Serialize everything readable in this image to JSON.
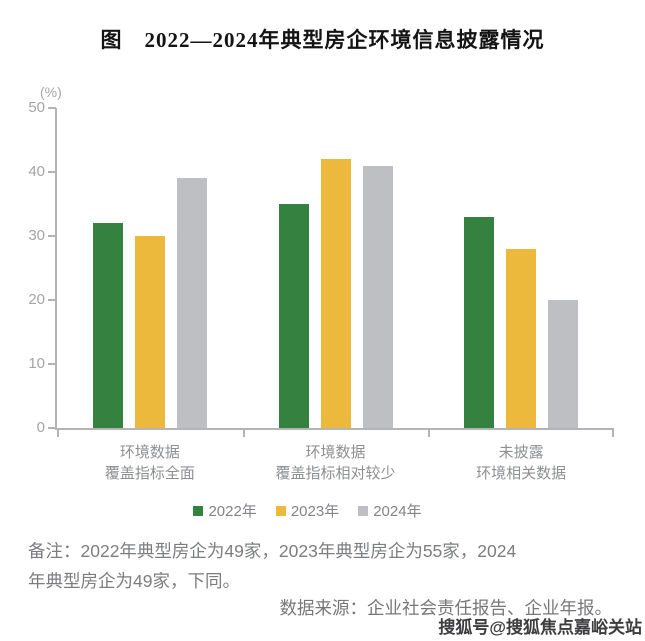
{
  "title": "图　2022—2024年典型房企环境信息披露情况",
  "y_axis_unit": "(%)",
  "chart_data": {
    "type": "bar",
    "title": "图 2022—2024年典型房企环境信息披露情况",
    "categories": [
      [
        "环境数据",
        "覆盖指标全面"
      ],
      [
        "环境数据",
        "覆盖指标相对较少"
      ],
      [
        "未披露",
        "环境相关数据"
      ]
    ],
    "series": [
      {
        "name": "2022年",
        "color": "#348140",
        "values": [
          32,
          35,
          33
        ]
      },
      {
        "name": "2023年",
        "color": "#ecb93c",
        "values": [
          30,
          42,
          28
        ]
      },
      {
        "name": "2024年",
        "color": "#bdbfc3",
        "values": [
          39,
          41,
          20
        ]
      }
    ],
    "ylabel": "(%)",
    "ylim": [
      0,
      50
    ],
    "yticks": [
      0,
      10,
      20,
      30,
      40,
      50
    ],
    "grid": false,
    "legend_position": "bottom"
  },
  "notes": {
    "line1": "备注：2022年典型房企为49家，2023年典型房企为55家，2024",
    "line2": "年典型房企为49家，下同。"
  },
  "source": "数据来源：企业社会责任报告、企业年报。",
  "watermark": "搜狐号@搜狐焦点嘉峪关站",
  "colors": {
    "green_2022": "#348140",
    "yellow_2023": "#ecb93c",
    "gray_2024": "#bdbfc3",
    "axis": "#b2b4b7",
    "title_text": "#141414",
    "label_text": "#8d8f91"
  }
}
